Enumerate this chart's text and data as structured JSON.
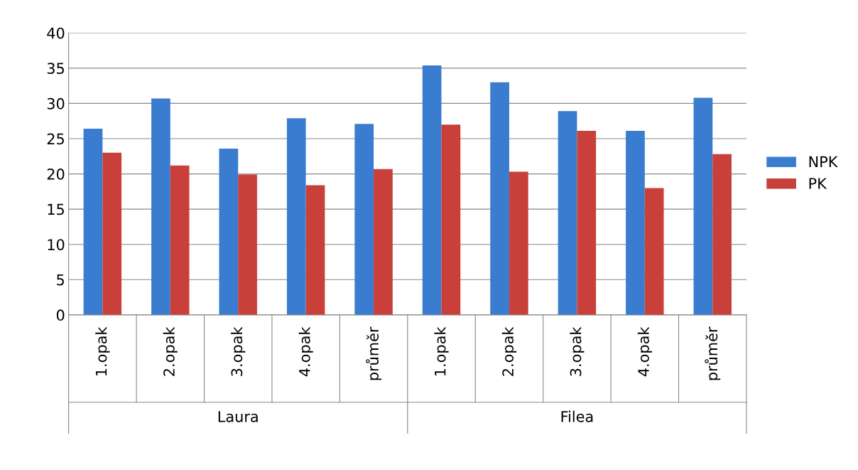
{
  "chart_data": {
    "type": "bar",
    "categories": [
      "1.opak",
      "2.opak",
      "3.opak",
      "4.opak",
      "průměr",
      "1.opak",
      "2.opak",
      "3.opak",
      "4.opak",
      "průměr"
    ],
    "series": [
      {
        "name": "NPK",
        "color": "#3a7dd0",
        "values": [
          26.4,
          30.7,
          23.6,
          27.9,
          27.1,
          35.4,
          33.0,
          28.9,
          26.1,
          30.8
        ]
      },
      {
        "name": "PK",
        "color": "#c9403a",
        "values": [
          23.0,
          21.2,
          19.9,
          18.4,
          20.7,
          27.0,
          20.3,
          26.1,
          18.0,
          22.8
        ]
      }
    ],
    "annotations": [
      "Laura",
      "Filea"
    ],
    "ylim": [
      0,
      40
    ],
    "yticks": [
      0,
      5,
      10,
      15,
      20,
      25,
      30,
      35,
      40
    ],
    "grid": "y",
    "legend": "right"
  }
}
